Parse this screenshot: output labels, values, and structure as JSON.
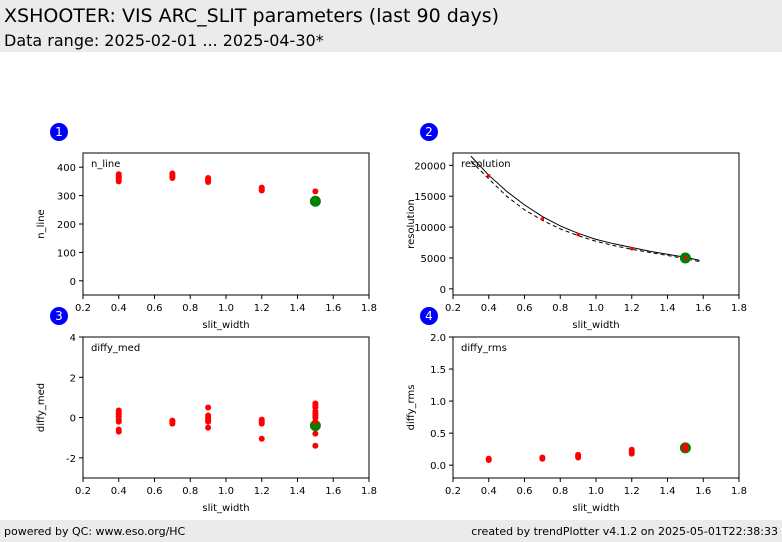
{
  "header": {
    "title": "XSHOOTER: VIS ARC_SLIT parameters (last 90 days)",
    "subtitle": "Data range: 2025-02-01 ... 2025-04-30*"
  },
  "footer": {
    "left": "powered by QC: www.eso.org/HC",
    "right": "created by trendPlotter v4.1.2 on 2025-05-01T22:38:33"
  },
  "colors": {
    "points": "#ff0000",
    "reference": "#008000",
    "badge": "#0000ff",
    "header_bg": "#ebebeb"
  },
  "chart_data": [
    {
      "type": "scatter",
      "badge": "1",
      "label": "n_line",
      "xlabel": "slit_width",
      "ylabel": "n_line",
      "xlim": [
        0.2,
        1.8
      ],
      "ylim": [
        -50,
        450
      ],
      "xticks": [
        0.2,
        0.4,
        0.6,
        0.8,
        1.0,
        1.2,
        1.4,
        1.6,
        1.8
      ],
      "yticks": [
        0,
        100,
        200,
        300,
        400
      ],
      "series": [
        {
          "x": [
            0.4,
            0.4,
            0.4,
            0.4,
            0.4,
            0.7,
            0.7,
            0.7,
            0.7,
            0.9,
            0.9,
            0.9,
            0.9,
            1.2,
            1.2,
            1.2,
            1.5
          ],
          "y": [
            375,
            368,
            362,
            356,
            350,
            378,
            372,
            367,
            362,
            362,
            356,
            352,
            348,
            328,
            322,
            318,
            315
          ]
        }
      ],
      "reference": {
        "x": 1.5,
        "y": 280
      }
    },
    {
      "type": "scatter",
      "badge": "2",
      "label": "resolution",
      "xlabel": "slit_width",
      "ylabel": "resolution",
      "xlim": [
        0.2,
        1.8
      ],
      "ylim": [
        -1000,
        22000
      ],
      "xticks": [
        0.2,
        0.4,
        0.6,
        0.8,
        1.0,
        1.2,
        1.4,
        1.6,
        1.8
      ],
      "yticks": [
        0,
        5000,
        10000,
        15000,
        20000
      ],
      "series": [
        {
          "x": [
            0.4,
            0.7,
            0.9,
            1.2,
            1.5
          ],
          "y": [
            18300,
            11300,
            8800,
            6500,
            5000
          ]
        }
      ],
      "reference": {
        "x": 1.5,
        "y": 5000
      },
      "curves": [
        {
          "style": "solid",
          "x": [
            0.3,
            0.4,
            0.5,
            0.6,
            0.7,
            0.8,
            0.9,
            1.0,
            1.1,
            1.2,
            1.3,
            1.4,
            1.5,
            1.58
          ],
          "y": [
            21500,
            18400,
            15800,
            13600,
            11700,
            10200,
            9000,
            8000,
            7300,
            6700,
            6100,
            5600,
            5100,
            4600
          ]
        },
        {
          "style": "dashed",
          "x": [
            0.3,
            0.4,
            0.5,
            0.6,
            0.7,
            0.8,
            0.9,
            1.0,
            1.1,
            1.2,
            1.3,
            1.4,
            1.5,
            1.58
          ],
          "y": [
            20700,
            17800,
            15000,
            12800,
            11100,
            9700,
            8600,
            7700,
            7000,
            6400,
            5900,
            5400,
            4900,
            4400
          ]
        }
      ]
    },
    {
      "type": "scatter",
      "badge": "3",
      "label": "diffy_med",
      "xlabel": "slit_width",
      "ylabel": "diffy_med",
      "xlim": [
        0.2,
        1.8
      ],
      "ylim": [
        -3,
        4
      ],
      "xticks": [
        0.2,
        0.4,
        0.6,
        0.8,
        1.0,
        1.2,
        1.4,
        1.6,
        1.8
      ],
      "yticks": [
        -2,
        0,
        2,
        4
      ],
      "series": [
        {
          "x": [
            0.4,
            0.4,
            0.4,
            0.4,
            0.4,
            0.4,
            0.4,
            0.4,
            0.7,
            0.7,
            0.7,
            0.9,
            0.9,
            0.9,
            0.9,
            0.9,
            0.9,
            1.2,
            1.2,
            1.2,
            1.2,
            1.5,
            1.5,
            1.5,
            1.5,
            1.5,
            1.5,
            1.5,
            1.5,
            1.5,
            1.5
          ],
          "y": [
            0.35,
            0.25,
            0.15,
            0.05,
            -0.1,
            -0.2,
            -0.6,
            -0.7,
            -0.15,
            -0.2,
            -0.3,
            0.5,
            0.1,
            0.0,
            -0.1,
            -0.2,
            -0.5,
            -0.1,
            -0.2,
            -0.3,
            -1.05,
            0.7,
            0.6,
            0.5,
            0.3,
            0.2,
            0.1,
            0.0,
            -0.2,
            -0.8,
            -1.4
          ]
        }
      ],
      "reference": {
        "x": 1.5,
        "y": -0.4
      }
    },
    {
      "type": "scatter",
      "badge": "4",
      "label": "diffy_rms",
      "xlabel": "slit_width",
      "ylabel": "diffy_rms",
      "xlim": [
        0.2,
        1.8
      ],
      "ylim": [
        -0.2,
        2.0
      ],
      "xticks": [
        0.2,
        0.4,
        0.6,
        0.8,
        1.0,
        1.2,
        1.4,
        1.6,
        1.8
      ],
      "yticks": [
        0.0,
        0.5,
        1.0,
        1.5,
        2.0
      ],
      "series": [
        {
          "x": [
            0.4,
            0.4,
            0.7,
            0.7,
            0.9,
            0.9,
            0.9,
            1.2,
            1.2,
            1.2,
            1.5,
            1.5,
            1.5
          ],
          "y": [
            0.1,
            0.08,
            0.12,
            0.1,
            0.16,
            0.14,
            0.12,
            0.24,
            0.21,
            0.18,
            0.3,
            0.27,
            0.25
          ]
        }
      ],
      "reference": {
        "x": 1.5,
        "y": 0.27
      }
    }
  ]
}
